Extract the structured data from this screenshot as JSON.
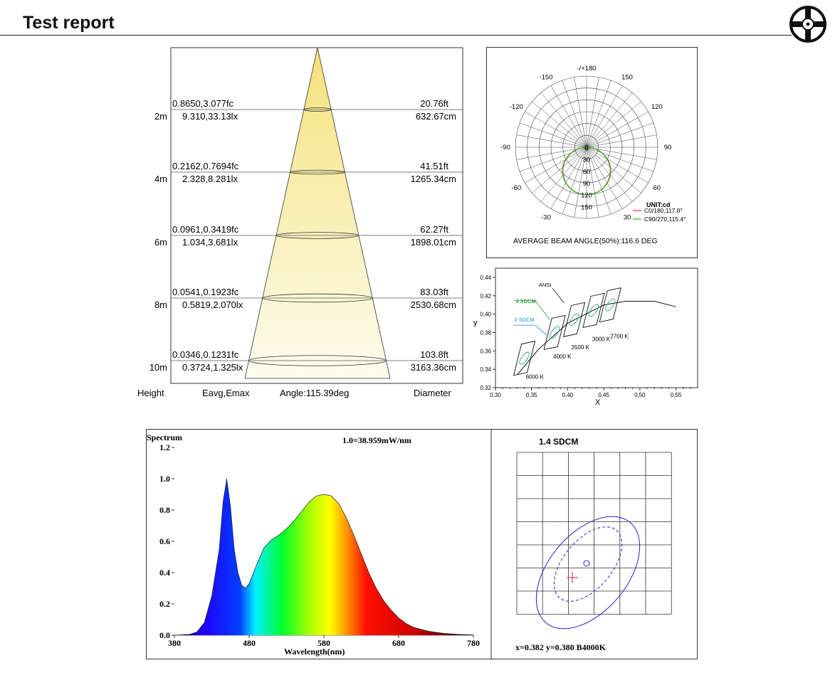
{
  "header": {
    "title": "Test report"
  },
  "chart_data": [
    {
      "type": "beam-cone",
      "levels": [
        {
          "height": "2m",
          "eavg_emax_fc": "0.8650,3.077fc",
          "eavg_emax_lx": "9.310,33.13lx",
          "diameter_ft": "20.76ft",
          "diameter_cm": "632.67cm"
        },
        {
          "height": "4m",
          "eavg_emax_fc": "0.2162,0.7694fc",
          "eavg_emax_lx": "2.328,8.281lx",
          "diameter_ft": "41.51ft",
          "diameter_cm": "1265.34cm"
        },
        {
          "height": "6m",
          "eavg_emax_fc": "0.0961,0.3419fc",
          "eavg_emax_lx": "1.034,3.681lx",
          "diameter_ft": "62.27ft",
          "diameter_cm": "1898.01cm"
        },
        {
          "height": "8m",
          "eavg_emax_fc": "0.0541,0.1923fc",
          "eavg_emax_lx": "0.5819,2.070lx",
          "diameter_ft": "83.03ft",
          "diameter_cm": "2530.68cm"
        },
        {
          "height": "10m",
          "eavg_emax_fc": "0.0346,0.1231fc",
          "eavg_emax_lx": "0.3724,1.325lx",
          "diameter_ft": "103.8ft",
          "diameter_cm": "3163.36cm"
        }
      ],
      "footer": {
        "height": "Height",
        "eavg": "Eavg,Emax",
        "angle": "Angle:115.39deg",
        "diameter": "Diameter"
      },
      "colors": {
        "cone_top": "#f5e27a",
        "cone_bottom": "#fdfcf0"
      }
    },
    {
      "type": "polar",
      "angle_labels": {
        "top": "-/+180",
        "left": [
          "-150",
          "-120",
          "-90",
          "-60",
          "-30"
        ],
        "right": [
          "150",
          "120",
          "90",
          "60",
          "30"
        ]
      },
      "radial_labels": [
        "0",
        "30",
        "60",
        "90",
        "120",
        "150"
      ],
      "radial_max": 180,
      "unit": "UNIT:cd",
      "series": [
        {
          "name": "C0/180,117.8°",
          "color": "#e03030",
          "beam_angle": 117.8
        },
        {
          "name": "C90/270,115.4°",
          "color": "#2db82d",
          "beam_angle": 115.4
        }
      ],
      "peak_cd": 120,
      "caption": "AVERAGE BEAM ANGLE(50%):116.6 DEG"
    },
    {
      "type": "scatter",
      "xlabel": "X",
      "ylabel": "y",
      "x_ticks": [
        "0,30",
        "0,35",
        "0,40",
        "0,45",
        "0,50",
        "0,55"
      ],
      "y_ticks": [
        "0,32",
        "0,34",
        "0,36",
        "0,38",
        "0,40",
        "0,42",
        "0,44"
      ],
      "xlim": [
        0.3,
        0.58
      ],
      "ylim": [
        0.32,
        0.45
      ],
      "annotations": {
        "ansi": "ANSI",
        "sdcm_green": "3 SDCM",
        "sdcm_blue": "3 SDCM"
      },
      "cct_labels": [
        {
          "label": "2700 K",
          "x": 0.459,
          "y": 0.38
        },
        {
          "label": "3000 K",
          "x": 0.434,
          "y": 0.377
        },
        {
          "label": "3500 K",
          "x": 0.405,
          "y": 0.368
        },
        {
          "label": "4000 K",
          "x": 0.38,
          "y": 0.358
        },
        {
          "label": "6000 K",
          "x": 0.342,
          "y": 0.336
        }
      ],
      "centers": [
        {
          "x": 0.459,
          "y": 0.41
        },
        {
          "x": 0.436,
          "y": 0.404
        },
        {
          "x": 0.409,
          "y": 0.394
        },
        {
          "x": 0.382,
          "y": 0.38
        },
        {
          "x": 0.34,
          "y": 0.352
        }
      ],
      "planckian": [
        [
          0.33,
          0.334
        ],
        [
          0.36,
          0.362
        ],
        [
          0.4,
          0.39
        ],
        [
          0.45,
          0.41
        ],
        [
          0.48,
          0.414
        ],
        [
          0.52,
          0.414
        ],
        [
          0.55,
          0.408
        ]
      ]
    },
    {
      "type": "line",
      "title": "Spectrum",
      "note": "1.0=38.959mW/nm",
      "xlabel": "Wavelength(nm)",
      "x_ticks": [
        "380",
        "480",
        "580",
        "680",
        "780"
      ],
      "y_ticks": [
        "0.0",
        "0.2",
        "0.4",
        "0.6",
        "0.8",
        "1.0",
        "1.2"
      ],
      "xlim": [
        380,
        780
      ],
      "ylim": [
        0,
        1.2
      ],
      "x": [
        380,
        400,
        410,
        420,
        430,
        440,
        445,
        450,
        455,
        460,
        465,
        470,
        475,
        480,
        490,
        500,
        510,
        520,
        530,
        540,
        550,
        560,
        570,
        580,
        590,
        600,
        610,
        620,
        630,
        640,
        650,
        660,
        670,
        680,
        690,
        700,
        720,
        740,
        760,
        780
      ],
      "y": [
        0.0,
        0.005,
        0.02,
        0.08,
        0.25,
        0.55,
        0.85,
        1.0,
        0.82,
        0.55,
        0.4,
        0.32,
        0.3,
        0.33,
        0.45,
        0.56,
        0.61,
        0.64,
        0.68,
        0.73,
        0.79,
        0.85,
        0.89,
        0.9,
        0.89,
        0.84,
        0.75,
        0.64,
        0.52,
        0.4,
        0.3,
        0.22,
        0.16,
        0.11,
        0.075,
        0.05,
        0.025,
        0.012,
        0.005,
        0.002
      ]
    },
    {
      "type": "chromaticity-ellipse",
      "title": "1.4  SDCM",
      "readout": "x=0.382 y=0.380 B4000K",
      "colors": {
        "ellipse": "#2222cc",
        "marker": "#e02020"
      }
    }
  ]
}
